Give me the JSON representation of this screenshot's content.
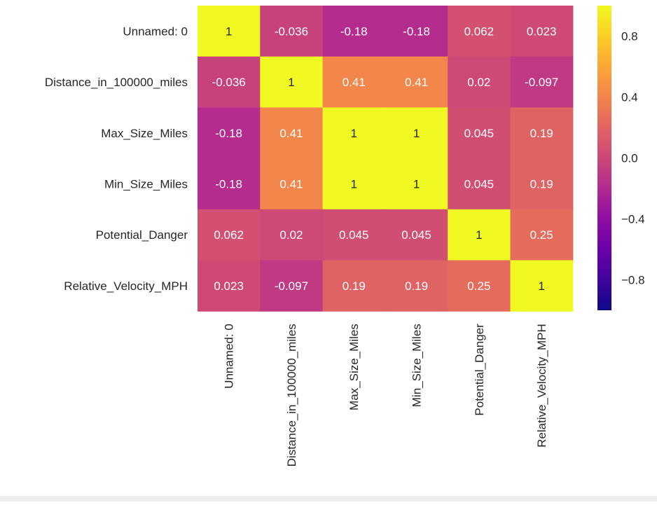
{
  "chart_data": {
    "type": "heatmap",
    "title": "",
    "xlabel": "",
    "ylabel": "",
    "rows": [
      "Unnamed: 0",
      "Distance_in_100000_miles",
      "Max_Size_Miles",
      "Min_Size_Miles",
      "Potential_Danger",
      "Relative_Velocity_MPH"
    ],
    "columns": [
      "Unnamed: 0",
      "Distance_in_100000_miles",
      "Max_Size_Miles",
      "Min_Size_Miles",
      "Potential_Danger",
      "Relative_Velocity_MPH"
    ],
    "values": [
      [
        1,
        -0.036,
        -0.18,
        -0.18,
        0.062,
        0.023
      ],
      [
        -0.036,
        1,
        0.41,
        0.41,
        0.02,
        -0.097
      ],
      [
        -0.18,
        0.41,
        1,
        1,
        0.045,
        0.19
      ],
      [
        -0.18,
        0.41,
        1,
        1,
        0.045,
        0.19
      ],
      [
        0.062,
        0.02,
        0.045,
        0.045,
        1,
        0.25
      ],
      [
        0.023,
        -0.097,
        0.19,
        0.19,
        0.25,
        1
      ]
    ],
    "annotations": [
      [
        "1",
        "-0.036",
        "-0.18",
        "-0.18",
        "0.062",
        "0.023"
      ],
      [
        "-0.036",
        "1",
        "0.41",
        "0.41",
        "0.02",
        "-0.097"
      ],
      [
        "-0.18",
        "0.41",
        "1",
        "1",
        "0.045",
        "0.19"
      ],
      [
        "-0.18",
        "0.41",
        "1",
        "1",
        "0.045",
        "0.19"
      ],
      [
        "0.062",
        "0.02",
        "0.045",
        "0.045",
        "1",
        "0.25"
      ],
      [
        "0.023",
        "-0.097",
        "0.19",
        "0.19",
        "0.25",
        "1"
      ]
    ],
    "colormap": "plasma",
    "vmin": -1,
    "vmax": 1,
    "colorbar_ticks": [
      0.8,
      0.4,
      0.0,
      -0.4,
      -0.8
    ],
    "colorbar_tick_labels": [
      "0.8",
      "0.4",
      "0.0",
      "−0.4",
      "−0.8"
    ]
  }
}
